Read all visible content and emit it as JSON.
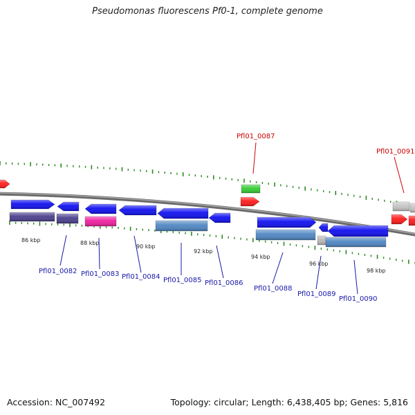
{
  "title": "Pseudomonas fluorescens Pf0-1, complete genome",
  "footer": {
    "accession": "Accession: NC_007492",
    "stats": "Topology: circular; Length: 6,438,405 bp; Genes: 5,816"
  },
  "colors": {
    "backbone": "#808080",
    "tick": "#2a8a1e",
    "label_red": "#cc0000",
    "label_blue": "#1818a8",
    "arrow_blue": "#0f0ff0",
    "arrow_red": "#ff1a1a",
    "arrow_green": "#33cc33",
    "arrow_gray": "#c4c4c4",
    "box_purple": "#4a3f8c",
    "box_magenta": "#ee1fa0",
    "box_steel": "#4f86c2",
    "box_gray": "#b8b8b8"
  },
  "ticks": [
    {
      "label": "86 kbp"
    },
    {
      "label": "88 kbp"
    },
    {
      "label": "90 kbp"
    },
    {
      "label": "92 kbp"
    },
    {
      "label": "94 kbp"
    },
    {
      "label": "96 kbp"
    },
    {
      "label": "98 kbp"
    }
  ],
  "genes": [
    {
      "label": "Pfl01_0082",
      "color": "blue"
    },
    {
      "label": "Pfl01_0083",
      "color": "blue"
    },
    {
      "label": "Pfl01_0084",
      "color": "blue"
    },
    {
      "label": "Pfl01_0085",
      "color": "blue"
    },
    {
      "label": "Pfl01_0086",
      "color": "blue"
    },
    {
      "label": "Pfl01_0087",
      "color": "red"
    },
    {
      "label": "Pfl01_0088",
      "color": "blue"
    },
    {
      "label": "Pfl01_0089",
      "color": "blue"
    },
    {
      "label": "Pfl01_0090",
      "color": "blue"
    },
    {
      "label": "Pfl01_0091",
      "color": "red"
    }
  ]
}
